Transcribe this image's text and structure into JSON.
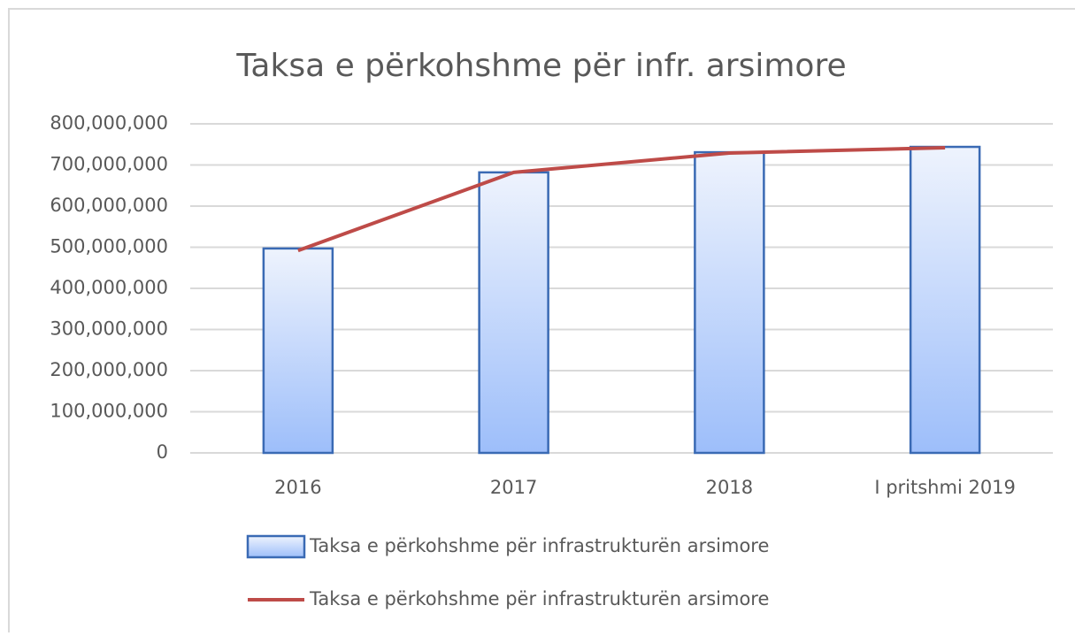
{
  "chart_data": {
    "type": "bar",
    "title": "Taksa e përkohshme për infr. arsimore",
    "categories": [
      "2016",
      "2017",
      "2018",
      "I pritshmi 2019"
    ],
    "series": [
      {
        "name": "Taksa e përkohshme për infrastrukturën arsimore",
        "type": "bar",
        "color": "#3a6ab4",
        "values": [
          497000000,
          682000000,
          731000000,
          744000000
        ]
      },
      {
        "name": "Taksa e përkohshme për infrastrukturën arsimore",
        "type": "line",
        "color": "#be4b48",
        "values": [
          492000000,
          682000000,
          729000000,
          742000000
        ]
      }
    ],
    "ylim": [
      0,
      800000000
    ],
    "yticks": [
      0,
      {
        "value": 100000000,
        "label": "100,000,000"
      },
      {
        "value": 200000000,
        "label": "200,000,000"
      },
      {
        "value": 300000000,
        "label": "300,000,000"
      },
      {
        "value": 400000000,
        "label": "400,000,000"
      },
      {
        "value": 500000000,
        "label": "500,000,000"
      },
      {
        "value": 600000000,
        "label": "600,000,000"
      },
      {
        "value": 700000000,
        "label": "700,000,000"
      },
      {
        "value": 800000000,
        "label": "800,000,000"
      }
    ],
    "grid": true
  }
}
